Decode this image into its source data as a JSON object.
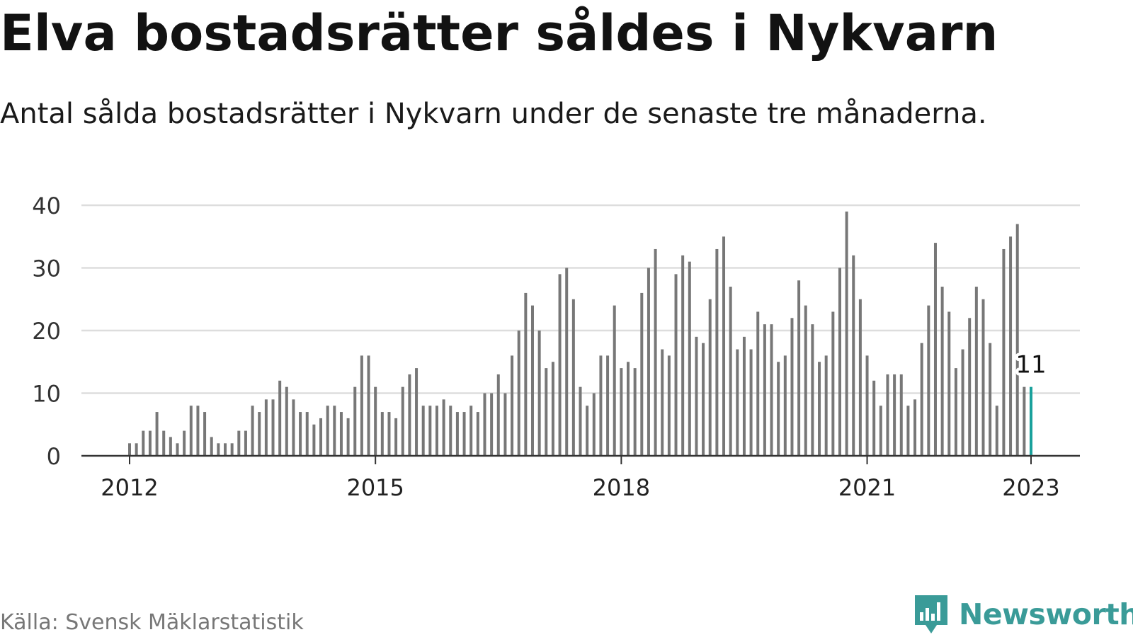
{
  "title": "Elva bostadsrätter såldes i Nykvarn",
  "subtitle": "Antal sålda bostadsrätter i Nykvarn under de senaste tre månaderna.",
  "source": "Källa: Svensk Mäklarstatistik",
  "logo": {
    "text": "Newsworthy",
    "icon": "newsworthy-bar-chart-icon"
  },
  "colors": {
    "bar": "#777777",
    "highlight": "#1aa19c",
    "grid": "#dddddd",
    "axis": "#333333",
    "brand": "#3a9b98"
  },
  "chart_data": {
    "type": "bar",
    "x_start": "2012-01",
    "ylim": [
      0,
      40
    ],
    "yticks": [
      0,
      10,
      20,
      30,
      40
    ],
    "xticks": [
      "2012",
      "2015",
      "2018",
      "2021",
      "2023"
    ],
    "grid": true,
    "highlight_label": "11",
    "values": [
      2,
      2,
      4,
      4,
      7,
      4,
      3,
      2,
      4,
      8,
      8,
      7,
      3,
      2,
      2,
      2,
      4,
      4,
      8,
      7,
      9,
      9,
      12,
      11,
      9,
      7,
      7,
      5,
      6,
      8,
      8,
      7,
      6,
      11,
      16,
      16,
      11,
      7,
      7,
      6,
      11,
      13,
      14,
      8,
      8,
      8,
      9,
      8,
      7,
      7,
      8,
      7,
      10,
      10,
      13,
      10,
      16,
      20,
      26,
      24,
      20,
      14,
      15,
      29,
      30,
      25,
      11,
      8,
      10,
      16,
      16,
      24,
      14,
      15,
      14,
      26,
      30,
      33,
      17,
      16,
      29,
      32,
      31,
      19,
      18,
      25,
      33,
      35,
      27,
      17,
      19,
      17,
      23,
      21,
      21,
      15,
      16,
      22,
      28,
      24,
      21,
      15,
      16,
      23,
      30,
      39,
      32,
      25,
      16,
      12,
      8,
      13,
      13,
      13,
      8,
      9,
      18,
      24,
      34,
      27,
      23,
      14,
      17,
      22,
      27,
      25,
      18,
      8,
      33,
      35,
      37,
      11,
      11
    ]
  }
}
